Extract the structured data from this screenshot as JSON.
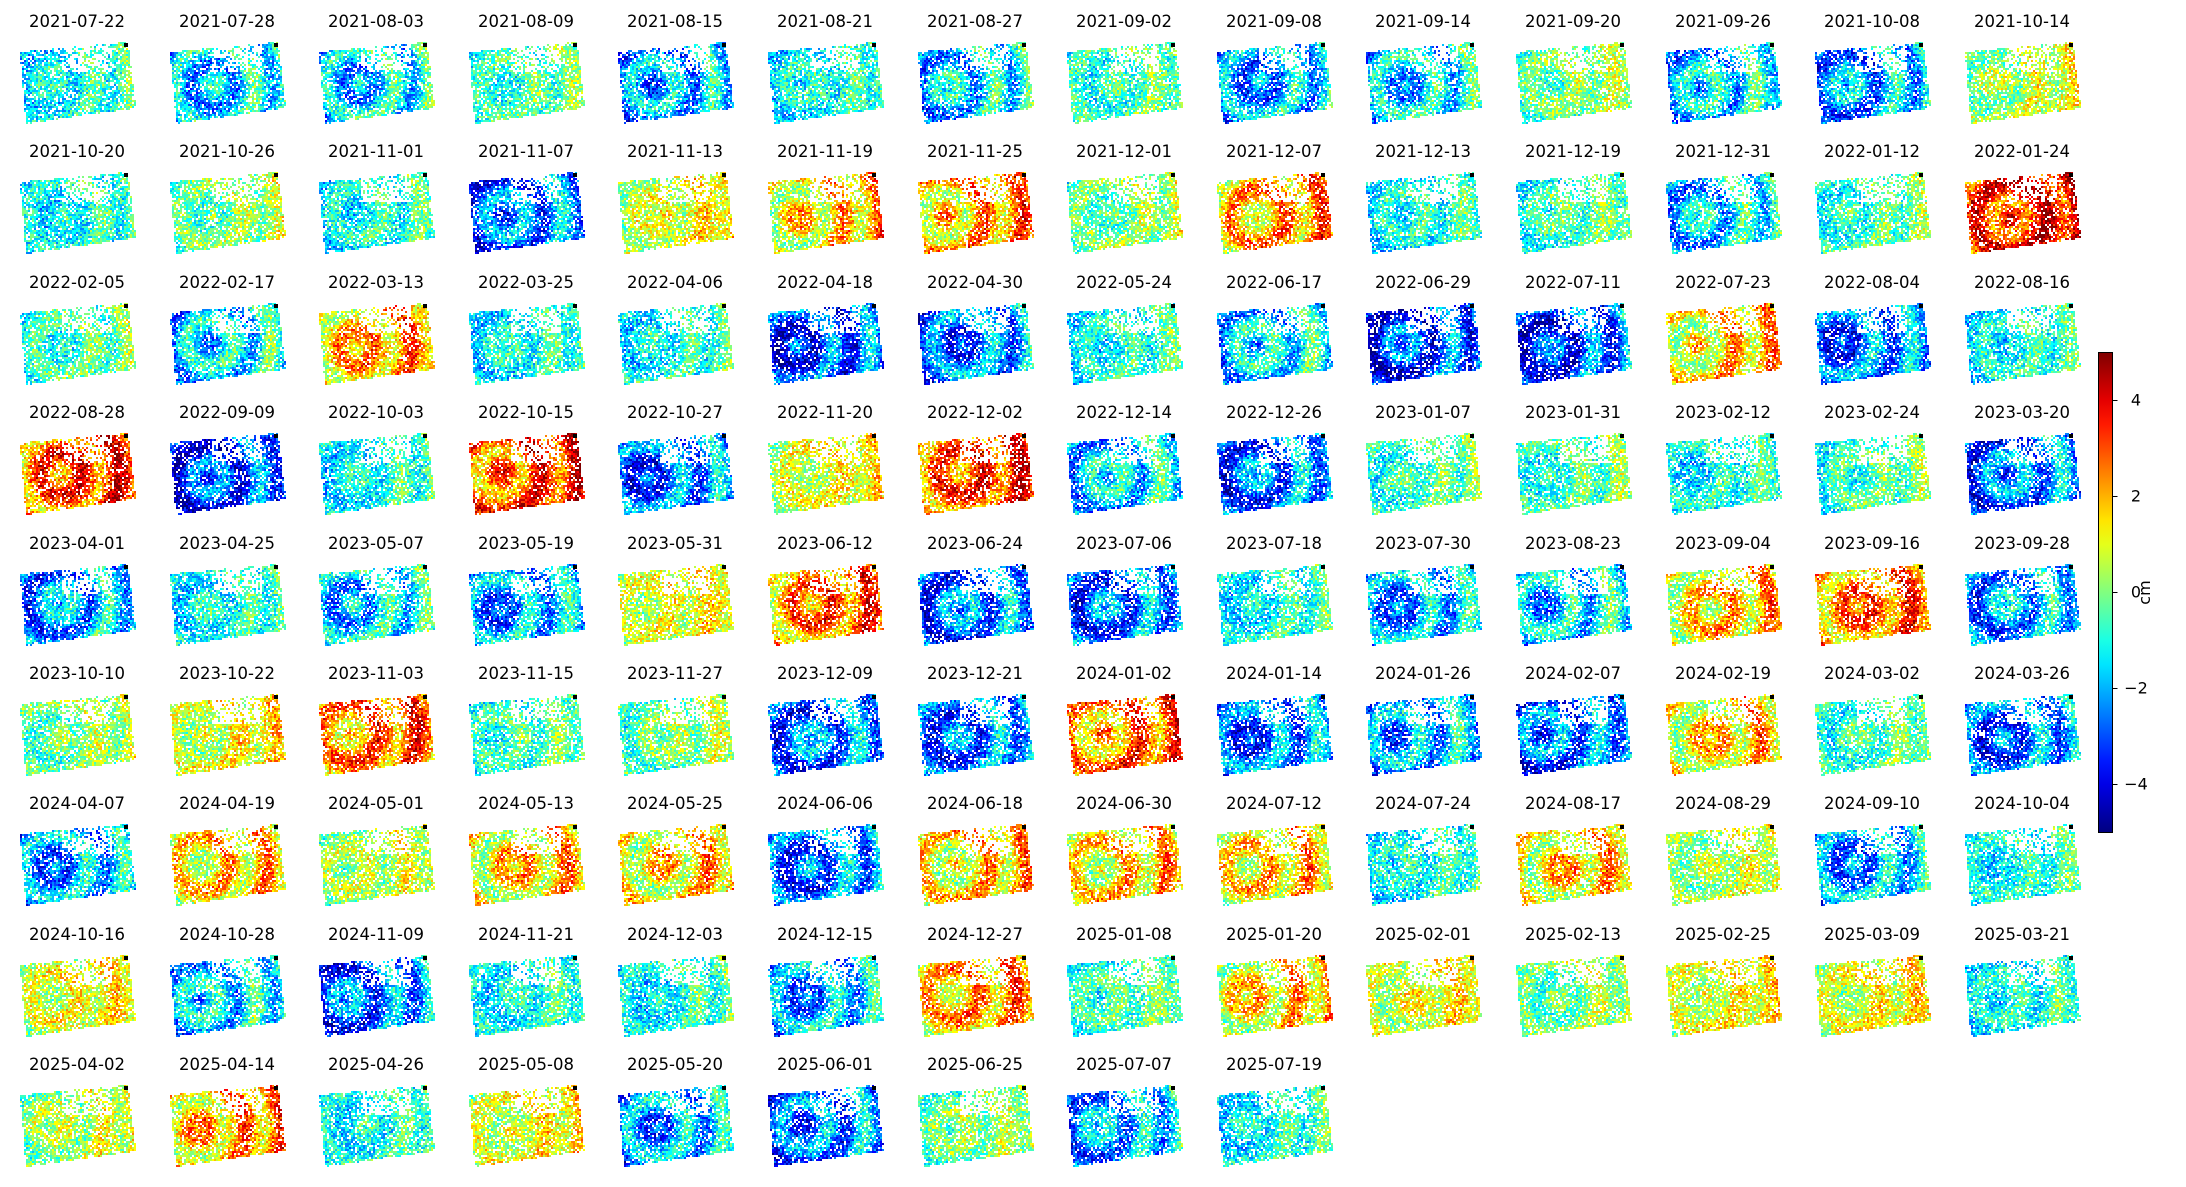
{
  "chart_data": {
    "type": "heatmap",
    "description_colormap": "jet",
    "colorbar": {
      "label": "cm",
      "vmin": -5,
      "vmax": 5,
      "ticks": [
        4,
        2,
        0,
        -2,
        -4
      ],
      "tick_labels": [
        "4",
        "2",
        "0",
        "−2",
        "−4"
      ]
    },
    "ncols": 14,
    "dates": [
      "2021-07-22",
      "2021-07-28",
      "2021-08-03",
      "2021-08-09",
      "2021-08-15",
      "2021-08-21",
      "2021-08-27",
      "2021-09-02",
      "2021-09-08",
      "2021-09-14",
      "2021-09-20",
      "2021-09-26",
      "2021-10-08",
      "2021-10-14",
      "2021-10-20",
      "2021-10-26",
      "2021-11-01",
      "2021-11-07",
      "2021-11-13",
      "2021-11-19",
      "2021-11-25",
      "2021-12-01",
      "2021-12-07",
      "2021-12-13",
      "2021-12-19",
      "2021-12-31",
      "2022-01-12",
      "2022-01-24",
      "2022-02-05",
      "2022-02-17",
      "2022-03-13",
      "2022-03-25",
      "2022-04-06",
      "2022-04-18",
      "2022-04-30",
      "2022-05-24",
      "2022-06-17",
      "2022-06-29",
      "2022-07-11",
      "2022-07-23",
      "2022-08-04",
      "2022-08-16",
      "2022-08-28",
      "2022-09-09",
      "2022-10-03",
      "2022-10-15",
      "2022-10-27",
      "2022-11-20",
      "2022-12-02",
      "2022-12-14",
      "2022-12-26",
      "2023-01-07",
      "2023-01-31",
      "2023-02-12",
      "2023-02-24",
      "2023-03-20",
      "2023-04-01",
      "2023-04-25",
      "2023-05-07",
      "2023-05-19",
      "2023-05-31",
      "2023-06-12",
      "2023-06-24",
      "2023-07-06",
      "2023-07-18",
      "2023-07-30",
      "2023-08-23",
      "2023-09-04",
      "2023-09-16",
      "2023-09-28",
      "2023-10-10",
      "2023-10-22",
      "2023-11-03",
      "2023-11-15",
      "2023-11-27",
      "2023-12-09",
      "2023-12-21",
      "2024-01-02",
      "2024-01-14",
      "2024-01-26",
      "2024-02-07",
      "2024-02-19",
      "2024-03-02",
      "2024-03-26",
      "2024-04-07",
      "2024-04-19",
      "2024-05-01",
      "2024-05-13",
      "2024-05-25",
      "2024-06-06",
      "2024-06-18",
      "2024-06-30",
      "2024-07-12",
      "2024-07-24",
      "2024-08-17",
      "2024-08-29",
      "2024-09-10",
      "2024-10-04",
      "2024-10-16",
      "2024-10-28",
      "2024-11-09",
      "2024-11-21",
      "2024-12-03",
      "2024-12-15",
      "2024-12-27",
      "2025-01-08",
      "2025-01-20",
      "2025-02-01",
      "2025-02-13",
      "2025-02-25",
      "2025-03-09",
      "2025-03-21",
      "2025-04-02",
      "2025-04-14",
      "2025-04-26",
      "2025-05-08",
      "2025-05-20",
      "2025-06-01",
      "2025-06-25",
      "2025-07-07",
      "2025-07-19"
    ],
    "mean_displacement_cm": [
      -1.0,
      -1.5,
      -1.5,
      -0.5,
      -2.0,
      -1.0,
      -1.5,
      -0.5,
      -2.0,
      -1.5,
      0.0,
      -1.5,
      -2.0,
      0.5,
      -1.0,
      0.0,
      -1.0,
      -2.5,
      1.0,
      1.5,
      2.0,
      0.0,
      2.0,
      -1.0,
      -0.5,
      -1.5,
      -0.5,
      3.5,
      -0.5,
      -1.5,
      2.0,
      -1.0,
      -1.0,
      -3.0,
      -2.5,
      -1.0,
      -1.5,
      -3.0,
      -3.0,
      1.5,
      -2.5,
      -1.0,
      3.0,
      -3.0,
      -1.0,
      3.0,
      -2.5,
      1.0,
      3.0,
      -1.5,
      -2.5,
      -0.5,
      -0.5,
      -1.0,
      -0.5,
      -2.5,
      -2.0,
      -1.0,
      -1.5,
      -2.0,
      1.0,
      2.5,
      -2.5,
      -2.5,
      -1.0,
      -2.0,
      -1.5,
      1.5,
      2.5,
      -2.0,
      0.0,
      1.0,
      2.5,
      -0.5,
      0.0,
      -2.5,
      -2.5,
      2.5,
      -2.5,
      -2.0,
      -2.5,
      1.5,
      -0.5,
      -2.5,
      -2.0,
      1.5,
      0.5,
      1.5,
      1.5,
      -2.5,
      1.5,
      1.5,
      1.5,
      -1.0,
      1.5,
      0.5,
      -2.0,
      -1.0,
      1.0,
      -1.5,
      -2.5,
      -1.0,
      -1.0,
      -2.0,
      2.0,
      -0.5,
      1.5,
      1.0,
      0.0,
      1.0,
      1.0,
      -1.0,
      0.5,
      2.0,
      -1.0,
      1.0,
      -2.0,
      -2.5,
      0.0,
      -2.0,
      -1.0
    ]
  }
}
